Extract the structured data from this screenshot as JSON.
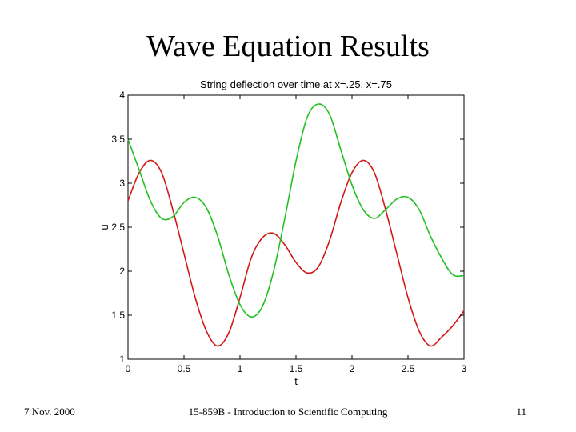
{
  "slide": {
    "title": "Wave Equation Results",
    "footer_left": "7 Nov. 2000",
    "footer_center": "15-859B - Introduction to Scientific Computing",
    "footer_right": "11"
  },
  "chart_data": {
    "type": "line",
    "title": "String deflection over time at x=.25, x=.75",
    "xlabel": "t",
    "ylabel": "u",
    "xlim": [
      0,
      3
    ],
    "ylim": [
      1,
      4
    ],
    "xticks": [
      0,
      0.5,
      1,
      1.5,
      2,
      2.5,
      3
    ],
    "xtick_labels": [
      "0",
      "0.5",
      "1",
      "1.5",
      "2",
      "2.5",
      "3"
    ],
    "yticks": [
      1,
      1.5,
      2,
      2.5,
      3,
      3.5,
      4
    ],
    "ytick_labels": [
      "1",
      "1.5",
      "2",
      "2.5",
      "3",
      "3.5",
      "4"
    ],
    "grid": false,
    "series": [
      {
        "color": "#d01818",
        "x": [
          0,
          0.1,
          0.2,
          0.3,
          0.4,
          0.5,
          0.6,
          0.7,
          0.8,
          0.9,
          1.0,
          1.1,
          1.2,
          1.3,
          1.4,
          1.5,
          1.6,
          1.7,
          1.8,
          1.9,
          2.0,
          2.1,
          2.2,
          2.3,
          2.4,
          2.5,
          2.6,
          2.7,
          2.8,
          2.9,
          3.0
        ],
        "values": [
          2.8,
          3.12,
          3.26,
          3.12,
          2.7,
          2.2,
          1.7,
          1.32,
          1.15,
          1.3,
          1.7,
          2.15,
          2.38,
          2.43,
          2.3,
          2.1,
          1.98,
          2.05,
          2.35,
          2.78,
          3.12,
          3.26,
          3.12,
          2.7,
          2.2,
          1.7,
          1.32,
          1.15,
          1.25,
          1.38,
          1.55
        ]
      },
      {
        "color": "#20c020",
        "x": [
          0,
          0.1,
          0.2,
          0.3,
          0.4,
          0.5,
          0.6,
          0.7,
          0.8,
          0.9,
          1.0,
          1.1,
          1.2,
          1.3,
          1.4,
          1.5,
          1.6,
          1.7,
          1.8,
          1.9,
          2.0,
          2.1,
          2.2,
          2.3,
          2.4,
          2.5,
          2.6,
          2.7,
          2.8,
          2.9,
          3.0
        ],
        "values": [
          3.5,
          3.15,
          2.8,
          2.6,
          2.62,
          2.78,
          2.84,
          2.72,
          2.4,
          1.96,
          1.62,
          1.48,
          1.6,
          2.0,
          2.6,
          3.25,
          3.75,
          3.9,
          3.78,
          3.38,
          2.98,
          2.7,
          2.6,
          2.7,
          2.82,
          2.84,
          2.7,
          2.4,
          2.15,
          1.96,
          1.95
        ]
      }
    ]
  }
}
